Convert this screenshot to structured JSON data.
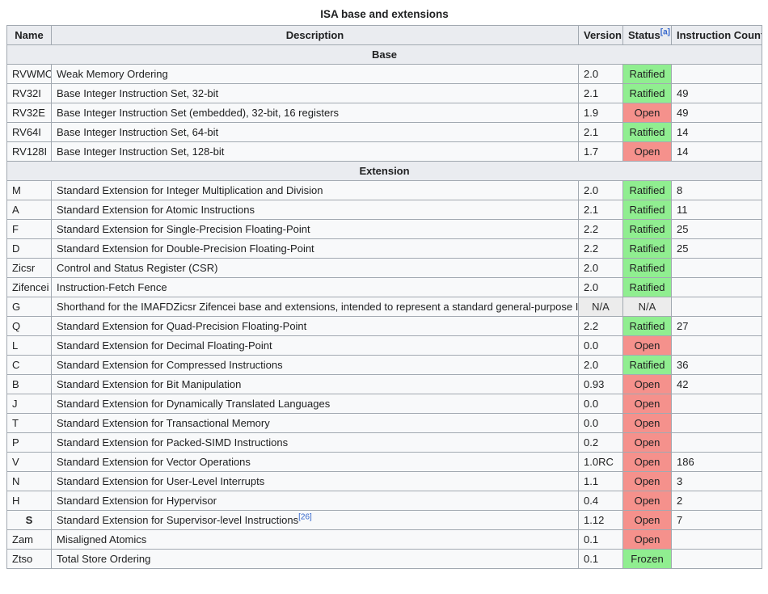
{
  "title": "ISA base and extensions",
  "columns": {
    "name": "Name",
    "description": "Description",
    "version": "Version",
    "status": "Status",
    "status_note": "[a]",
    "count": "Instruction Count"
  },
  "status_colors": {
    "ratified": "#90ee90",
    "frozen": "#90ee90",
    "open": "#f5918c",
    "na": "#ececec"
  },
  "sections": [
    {
      "label": "Base",
      "rows": [
        {
          "name": "RVWMO",
          "description": "Weak Memory Ordering",
          "version": "2.0",
          "status": "Ratified",
          "status_type": "ratified",
          "count": ""
        },
        {
          "name": "RV32I",
          "description": "Base Integer Instruction Set, 32-bit",
          "version": "2.1",
          "status": "Ratified",
          "status_type": "ratified",
          "count": "49"
        },
        {
          "name": "RV32E",
          "description": "Base Integer Instruction Set (embedded), 32-bit, 16 registers",
          "version": "1.9",
          "status": "Open",
          "status_type": "open",
          "count": "49"
        },
        {
          "name": "RV64I",
          "description": "Base Integer Instruction Set, 64-bit",
          "version": "2.1",
          "status": "Ratified",
          "status_type": "ratified",
          "count": "14"
        },
        {
          "name": "RV128I",
          "description": "Base Integer Instruction Set, 128-bit",
          "version": "1.7",
          "status": "Open",
          "status_type": "open",
          "count": "14"
        }
      ]
    },
    {
      "label": "Extension",
      "rows": [
        {
          "name": "M",
          "description": "Standard Extension for Integer Multiplication and Division",
          "version": "2.0",
          "status": "Ratified",
          "status_type": "ratified",
          "count": "8"
        },
        {
          "name": "A",
          "description": "Standard Extension for Atomic Instructions",
          "version": "2.1",
          "status": "Ratified",
          "status_type": "ratified",
          "count": "11"
        },
        {
          "name": "F",
          "description": "Standard Extension for Single-Precision Floating-Point",
          "version": "2.2",
          "status": "Ratified",
          "status_type": "ratified",
          "count": "25"
        },
        {
          "name": "D",
          "description": "Standard Extension for Double-Precision Floating-Point",
          "version": "2.2",
          "status": "Ratified",
          "status_type": "ratified",
          "count": "25"
        },
        {
          "name": "Zicsr",
          "description": "Control and Status Register (CSR)",
          "version": "2.0",
          "status": "Ratified",
          "status_type": "ratified",
          "count": ""
        },
        {
          "name": "Zifencei",
          "description": "Instruction-Fetch Fence",
          "version": "2.0",
          "status": "Ratified",
          "status_type": "ratified",
          "count": ""
        },
        {
          "name": "G",
          "description": "Shorthand for the IMAFDZicsr Zifencei base and extensions, intended to represent a standard general-purpose ISA",
          "version": "N/A",
          "version_na": true,
          "status": "N/A",
          "status_type": "na",
          "count": ""
        },
        {
          "name": "Q",
          "description": "Standard Extension for Quad-Precision Floating-Point",
          "version": "2.2",
          "status": "Ratified",
          "status_type": "ratified",
          "count": "27"
        },
        {
          "name": "L",
          "description": "Standard Extension for Decimal Floating-Point",
          "version": "0.0",
          "status": "Open",
          "status_type": "open",
          "count": ""
        },
        {
          "name": "C",
          "description": "Standard Extension for Compressed Instructions",
          "version": "2.0",
          "status": "Ratified",
          "status_type": "ratified",
          "count": "36"
        },
        {
          "name": "B",
          "description": "Standard Extension for Bit Manipulation",
          "version": "0.93",
          "status": "Open",
          "status_type": "open",
          "count": "42"
        },
        {
          "name": "J",
          "description": "Standard Extension for Dynamically Translated Languages",
          "version": "0.0",
          "status": "Open",
          "status_type": "open",
          "count": ""
        },
        {
          "name": "T",
          "description": "Standard Extension for Transactional Memory",
          "version": "0.0",
          "status": "Open",
          "status_type": "open",
          "count": ""
        },
        {
          "name": "P",
          "description": "Standard Extension for Packed-SIMD Instructions",
          "version": "0.2",
          "status": "Open",
          "status_type": "open",
          "count": ""
        },
        {
          "name": "V",
          "description": "Standard Extension for Vector Operations",
          "version": "1.0RC",
          "status": "Open",
          "status_type": "open",
          "count": "186"
        },
        {
          "name": "N",
          "description": "Standard Extension for User-Level Interrupts",
          "version": "1.1",
          "status": "Open",
          "status_type": "open",
          "count": "3"
        },
        {
          "name": "H",
          "description": "Standard Extension for Hypervisor",
          "version": "0.4",
          "status": "Open",
          "status_type": "open",
          "count": "2"
        },
        {
          "name": "S",
          "name_header": true,
          "description": "Standard Extension for Supervisor-level Instructions",
          "description_sup": "[26]",
          "version": "1.12",
          "status": "Open",
          "status_type": "open",
          "count": "7"
        },
        {
          "name": "Zam",
          "description": "Misaligned Atomics",
          "version": "0.1",
          "status": "Open",
          "status_type": "open",
          "count": ""
        },
        {
          "name": "Ztso",
          "description": "Total Store Ordering",
          "version": "0.1",
          "status": "Frozen",
          "status_type": "frozen",
          "count": ""
        }
      ]
    }
  ]
}
